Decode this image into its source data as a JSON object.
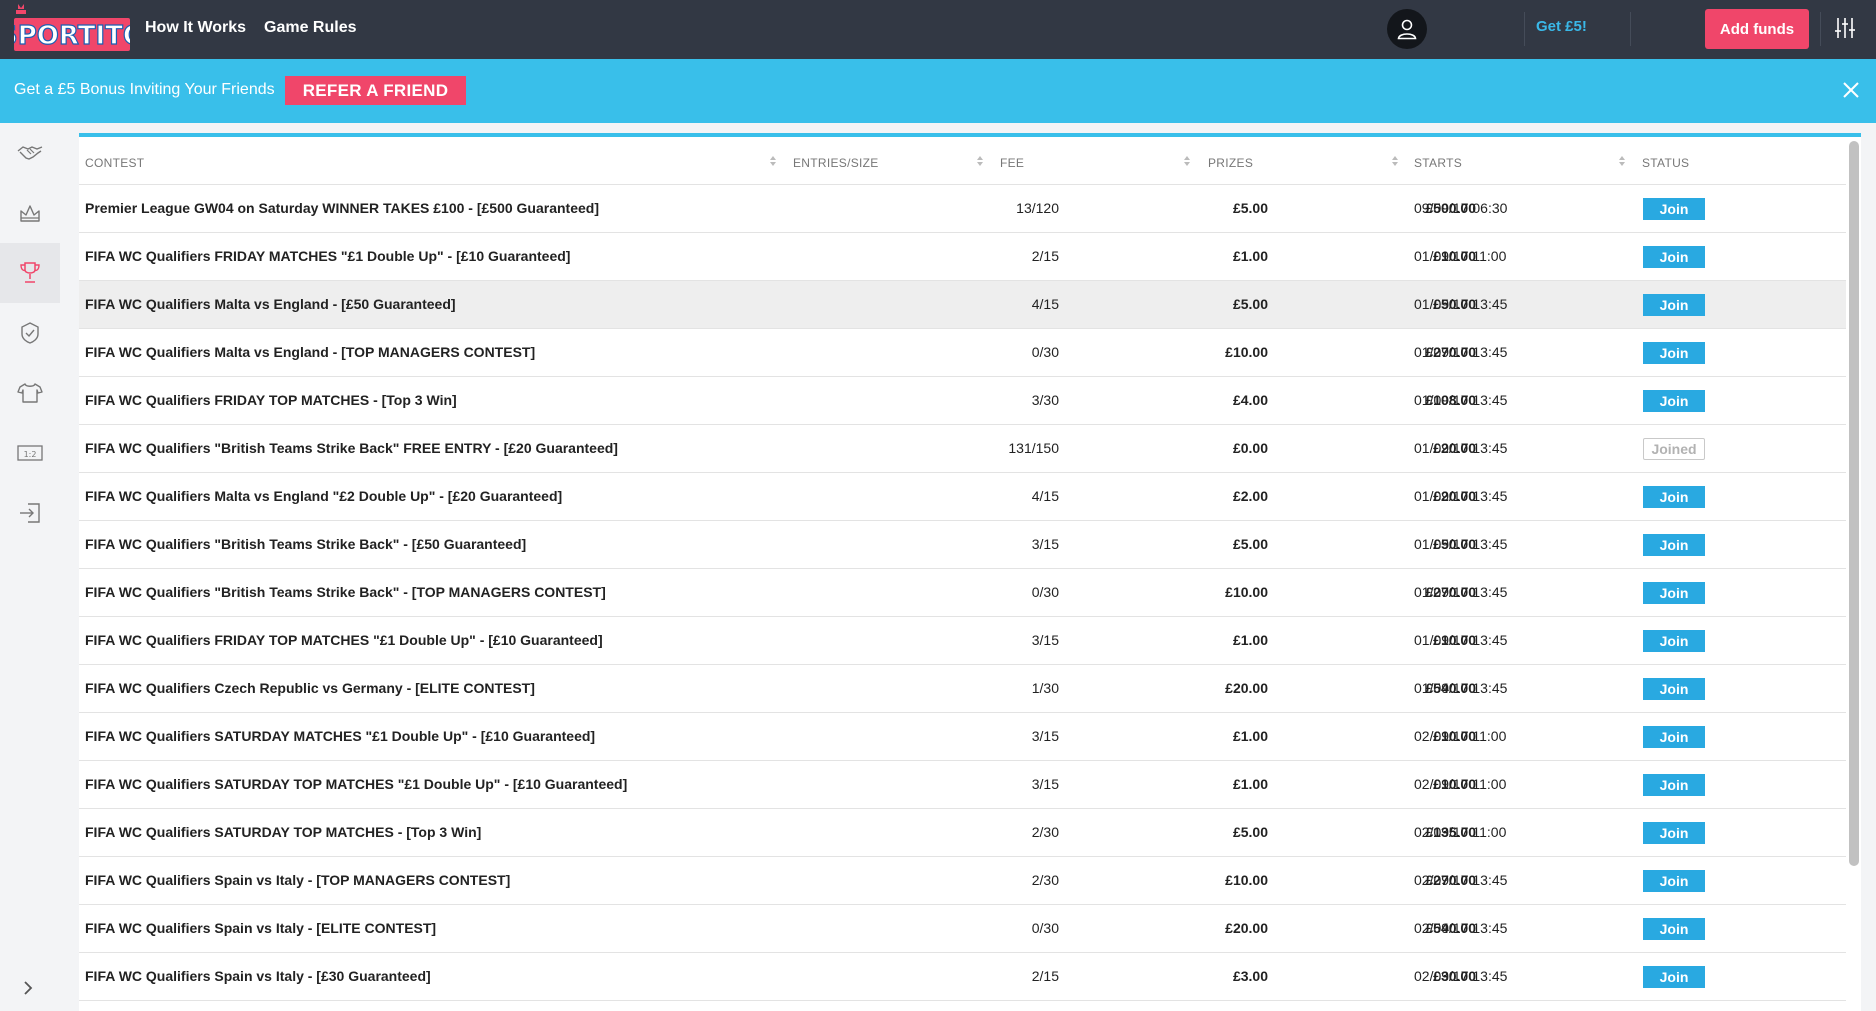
{
  "header": {
    "logo_text": "SPORTITO",
    "nav": [
      "How It Works",
      "Game Rules"
    ],
    "get_bonus": "Get £5!",
    "add_funds": "Add funds"
  },
  "promo": {
    "text": "Get a £5 Bonus Inviting Your Friends",
    "button": "REFER A FRIEND"
  },
  "sidebar": {
    "icons": [
      "handshake-icon",
      "crown-icon",
      "trophy-icon",
      "shield-icon",
      "shirt-icon",
      "scoreboard-icon",
      "sign-in-icon"
    ],
    "active_index": 2
  },
  "table": {
    "columns": [
      "CONTEST",
      "ENTRIES/SIZE",
      "FEE",
      "PRIZES",
      "STARTS",
      "STATUS"
    ],
    "rows": [
      {
        "name": "Premier League GW04 on Saturday WINNER TAKES £100 - [£500 Guaranteed]",
        "entries": "13/120",
        "fee": "£5.00",
        "prize": "£500.00",
        "starts": "09/09/17 06:30",
        "status": "Join"
      },
      {
        "name": "FIFA WC Qualifiers FRIDAY MATCHES \"£1 Double Up\" - [£10 Guaranteed]",
        "entries": "2/15",
        "fee": "£1.00",
        "prize": "£10.00",
        "starts": "01/09/17 11:00",
        "status": "Join"
      },
      {
        "name": "FIFA WC Qualifiers Malta vs England - [£50 Guaranteed]",
        "entries": "4/15",
        "fee": "£5.00",
        "prize": "£50.00",
        "starts": "01/09/17 13:45",
        "status": "Join"
      },
      {
        "name": "FIFA WC Qualifiers Malta vs England - [TOP MANAGERS CONTEST]",
        "entries": "0/30",
        "fee": "£10.00",
        "prize": "£270.00",
        "starts": "01/09/17 13:45",
        "status": "Join"
      },
      {
        "name": "FIFA WC Qualifiers FRIDAY TOP MATCHES - [Top 3 Win]",
        "entries": "3/30",
        "fee": "£4.00",
        "prize": "£108.00",
        "starts": "01/09/17 13:45",
        "status": "Join"
      },
      {
        "name": "FIFA WC Qualifiers \"British Teams Strike Back\" FREE ENTRY - [£20 Guaranteed]",
        "entries": "131/150",
        "fee": "£0.00",
        "prize": "£20.00",
        "starts": "01/09/17 13:45",
        "status": "Joined"
      },
      {
        "name": "FIFA WC Qualifiers Malta vs England \"£2 Double Up\" - [£20 Guaranteed]",
        "entries": "4/15",
        "fee": "£2.00",
        "prize": "£20.00",
        "starts": "01/09/17 13:45",
        "status": "Join"
      },
      {
        "name": "FIFA WC Qualifiers \"British Teams Strike Back\" - [£50 Guaranteed]",
        "entries": "3/15",
        "fee": "£5.00",
        "prize": "£50.00",
        "starts": "01/09/17 13:45",
        "status": "Join"
      },
      {
        "name": "FIFA WC Qualifiers \"British Teams Strike Back\" - [TOP MANAGERS CONTEST]",
        "entries": "0/30",
        "fee": "£10.00",
        "prize": "£270.00",
        "starts": "01/09/17 13:45",
        "status": "Join"
      },
      {
        "name": "FIFA WC Qualifiers FRIDAY TOP MATCHES \"£1 Double Up\" - [£10 Guaranteed]",
        "entries": "3/15",
        "fee": "£1.00",
        "prize": "£10.00",
        "starts": "01/09/17 13:45",
        "status": "Join"
      },
      {
        "name": "FIFA WC Qualifiers Czech Republic vs Germany - [ELITE CONTEST]",
        "entries": "1/30",
        "fee": "£20.00",
        "prize": "£540.00",
        "starts": "01/09/17 13:45",
        "status": "Join"
      },
      {
        "name": "FIFA WC Qualifiers SATURDAY MATCHES \"£1 Double Up\" - [£10 Guaranteed]",
        "entries": "3/15",
        "fee": "£1.00",
        "prize": "£10.00",
        "starts": "02/09/17 11:00",
        "status": "Join"
      },
      {
        "name": "FIFA WC Qualifiers SATURDAY TOP MATCHES \"£1 Double Up\" - [£10 Guaranteed]",
        "entries": "3/15",
        "fee": "£1.00",
        "prize": "£10.00",
        "starts": "02/09/17 11:00",
        "status": "Join"
      },
      {
        "name": "FIFA WC Qualifiers SATURDAY TOP MATCHES - [Top 3 Win]",
        "entries": "2/30",
        "fee": "£5.00",
        "prize": "£135.00",
        "starts": "02/09/17 11:00",
        "status": "Join"
      },
      {
        "name": "FIFA WC Qualifiers Spain vs Italy - [TOP MANAGERS CONTEST]",
        "entries": "2/30",
        "fee": "£10.00",
        "prize": "£270.00",
        "starts": "02/09/17 13:45",
        "status": "Join"
      },
      {
        "name": "FIFA WC Qualifiers Spain vs Italy - [ELITE CONTEST]",
        "entries": "0/30",
        "fee": "£20.00",
        "prize": "£540.00",
        "starts": "02/09/17 13:45",
        "status": "Join"
      },
      {
        "name": "FIFA WC Qualifiers Spain vs Italy - [£30 Guaranteed]",
        "entries": "2/15",
        "fee": "£3.00",
        "prize": "£30.00",
        "starts": "02/09/17 13:45",
        "status": "Join"
      }
    ],
    "highlighted_row": 2
  },
  "colors": {
    "topbar": "#323844",
    "accent_blue": "#39bfea",
    "join_blue": "#29a9e1",
    "pink": "#f0466a"
  }
}
